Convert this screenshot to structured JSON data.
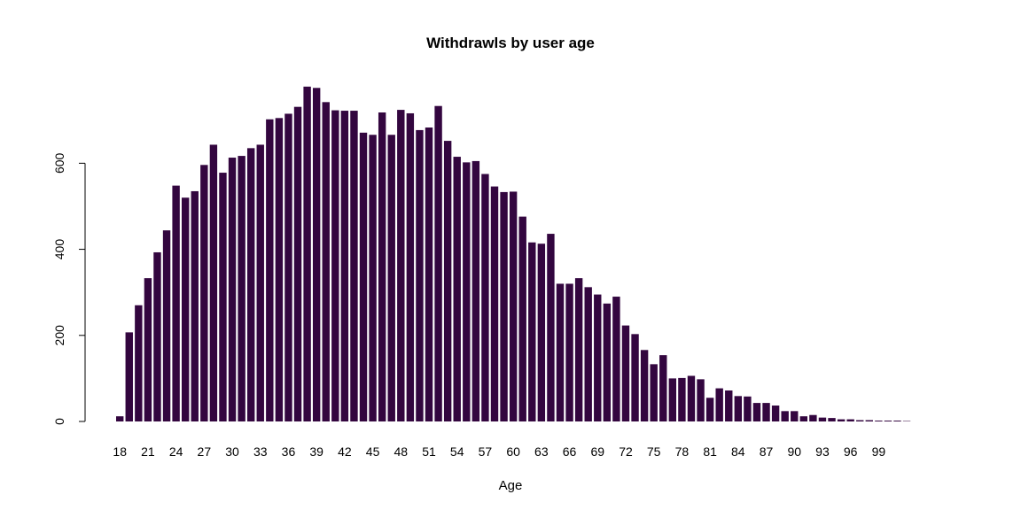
{
  "chart_data": {
    "type": "bar",
    "title": "Withdrawls by user age",
    "xlabel": "Age",
    "ylabel": "",
    "bar_color": "#33063f",
    "ylim": [
      0,
      790
    ],
    "y_ticks": [
      0,
      200,
      400,
      600
    ],
    "categories": [
      "18",
      "19",
      "20",
      "21",
      "22",
      "23",
      "24",
      "25",
      "26",
      "27",
      "28",
      "29",
      "30",
      "31",
      "32",
      "33",
      "34",
      "35",
      "36",
      "37",
      "38",
      "39",
      "40",
      "41",
      "42",
      "43",
      "44",
      "45",
      "46",
      "47",
      "48",
      "49",
      "50",
      "51",
      "52",
      "53",
      "54",
      "55",
      "56",
      "57",
      "58",
      "59",
      "60",
      "61",
      "62",
      "63",
      "64",
      "65",
      "66",
      "67",
      "68",
      "69",
      "70",
      "71",
      "72",
      "73",
      "74",
      "75",
      "76",
      "77",
      "78",
      "79",
      "80",
      "81",
      "82",
      "83",
      "84",
      "85",
      "86",
      "87",
      "88",
      "89",
      "90",
      "91",
      "92",
      "93",
      "94",
      "95",
      "96",
      "97",
      "98",
      "99",
      "100",
      "101",
      "102"
    ],
    "x_tick_labels": [
      "18",
      "21",
      "24",
      "27",
      "30",
      "33",
      "36",
      "39",
      "42",
      "45",
      "48",
      "51",
      "54",
      "57",
      "60",
      "63",
      "66",
      "69",
      "72",
      "75",
      "78",
      "81",
      "84",
      "87",
      "90",
      "93",
      "96",
      "99"
    ],
    "values": [
      12,
      207,
      270,
      333,
      393,
      444,
      548,
      520,
      535,
      596,
      643,
      578,
      613,
      617,
      635,
      643,
      702,
      705,
      715,
      731,
      778,
      775,
      742,
      723,
      722,
      722,
      671,
      666,
      718,
      666,
      724,
      716,
      677,
      683,
      733,
      652,
      615,
      602,
      605,
      575,
      546,
      533,
      534,
      476,
      416,
      413,
      436,
      320,
      320,
      333,
      312,
      295,
      274,
      290,
      223,
      203,
      166,
      133,
      154,
      100,
      101,
      106,
      98,
      55,
      77,
      72,
      59,
      58,
      43,
      43,
      37,
      24,
      24,
      12,
      15,
      9,
      8,
      5,
      5,
      3,
      3,
      2,
      2,
      2,
      1
    ]
  }
}
